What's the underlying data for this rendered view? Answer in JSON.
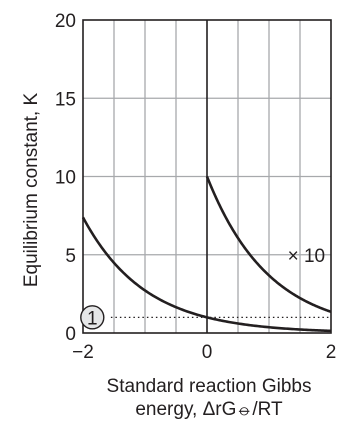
{
  "chart_data": {
    "type": "line",
    "xlabel_line1": "Standard reaction Gibbs",
    "xlabel_line2": "energy, ΔrG⦵/RT",
    "ylabel": "Equilibrium constant, K",
    "xlim": [
      -2,
      2
    ],
    "ylim": [
      0,
      20
    ],
    "x_ticks": [
      -2,
      0,
      2
    ],
    "x_tick_labels": [
      "−2",
      "0",
      "2"
    ],
    "y_ticks": [
      0,
      5,
      10,
      15,
      20
    ],
    "y_tick_labels": [
      "0",
      "5",
      "10",
      "15",
      "20"
    ],
    "grid": true,
    "grid_x_step": 0.5,
    "grid_y_step": 5,
    "series": [
      {
        "function": "K = exp(-x)",
        "x_range": [
          -2,
          2
        ],
        "x": [
          -2,
          -1.5,
          -1,
          -0.5,
          0,
          0.5,
          1,
          1.5,
          2
        ],
        "values": [
          7.39,
          4.48,
          2.72,
          1.65,
          1.0,
          0.61,
          0.37,
          0.22,
          0.14
        ]
      },
      {
        "function": "10 × exp(-x)",
        "x_range": [
          0,
          2
        ],
        "x": [
          0,
          0.5,
          1,
          1.5,
          2
        ],
        "values": [
          10,
          6.07,
          3.68,
          2.23,
          1.35
        ]
      }
    ],
    "reference_line": {
      "y": 1,
      "style": "dotted"
    },
    "annotations": [
      {
        "text": "× 10",
        "x": 1.3,
        "y": 5
      },
      {
        "text": "1",
        "x": -1.85,
        "y": 1,
        "shape": "circle"
      }
    ]
  }
}
